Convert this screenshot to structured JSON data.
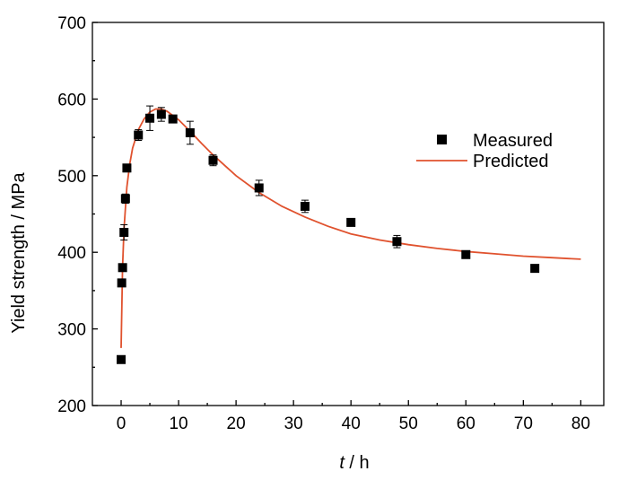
{
  "chart_data": {
    "type": "scatter",
    "xlabel_var": "t",
    "xlabel_unit": " / h",
    "ylabel": "Yield strength / MPa",
    "xlim": [
      -5,
      84
    ],
    "ylim": [
      200,
      700
    ],
    "xticks": [
      0,
      10,
      20,
      30,
      40,
      50,
      60,
      70,
      80
    ],
    "yticks": [
      200,
      300,
      400,
      500,
      600,
      700
    ],
    "grid": false,
    "legend_position": "top-right",
    "colors": {
      "measured": "#000000",
      "predicted": "#e0522e"
    },
    "series": [
      {
        "name": "Measured",
        "kind": "scatter-with-error",
        "x": [
          0,
          0.1,
          0.25,
          0.5,
          0.75,
          1,
          3,
          5,
          7,
          9,
          12,
          16,
          24,
          32,
          40,
          48,
          60,
          72
        ],
        "y": [
          260,
          360,
          380,
          426,
          470,
          510,
          553,
          575,
          580,
          574,
          556,
          520,
          484,
          460,
          439,
          414,
          397,
          379
        ],
        "err": [
          0,
          4,
          4,
          10,
          6,
          5,
          7,
          16,
          9,
          3,
          15,
          7,
          10,
          8,
          3,
          8,
          3,
          3
        ]
      },
      {
        "name": "Predicted",
        "kind": "line",
        "x": [
          0,
          0.25,
          0.5,
          1,
          1.5,
          2,
          3,
          4,
          5,
          6,
          7,
          8,
          10,
          12,
          14,
          16,
          20,
          24,
          28,
          32,
          36,
          40,
          45,
          50,
          55,
          60,
          65,
          70,
          75,
          80
        ],
        "y": [
          275,
          380,
          430,
          485,
          515,
          536,
          560,
          574,
          583,
          587,
          587,
          584,
          573,
          558,
          542,
          527,
          500,
          478,
          460,
          446,
          434,
          424,
          416,
          410,
          405,
          401,
          398,
          395,
          393,
          391
        ]
      }
    ]
  }
}
